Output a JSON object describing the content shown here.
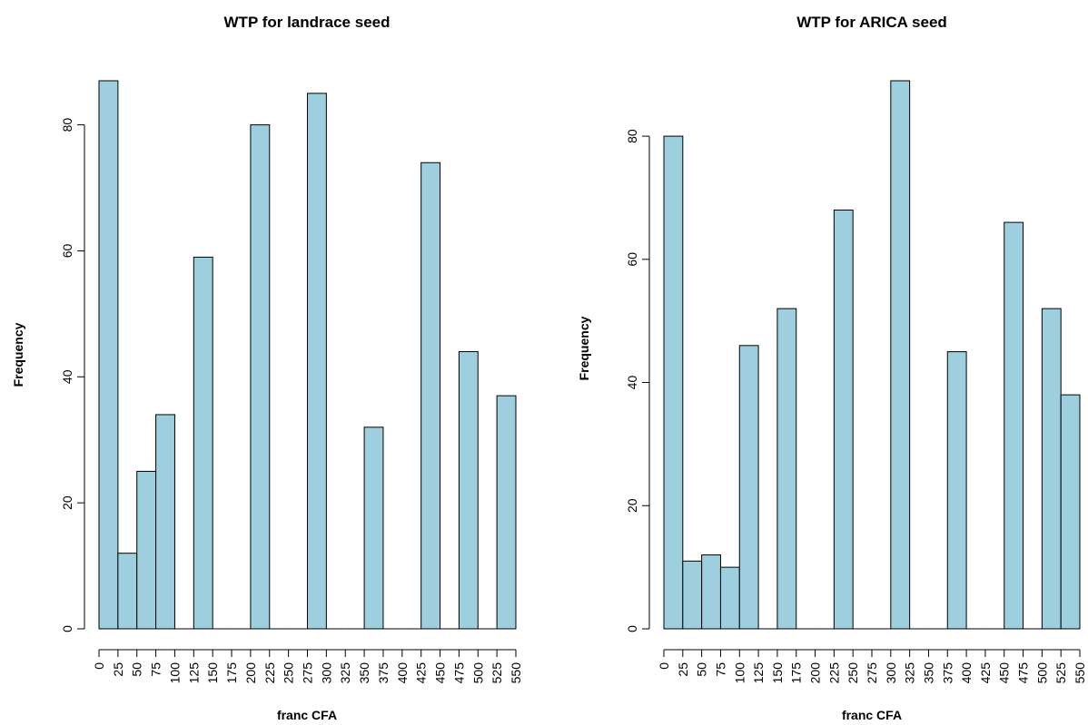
{
  "colors": {
    "bar_fill": "#9ecfdf",
    "bar_stroke": "#000000",
    "axis": "#000000"
  },
  "chart_data": [
    {
      "type": "bar",
      "title": "WTP for landrace seed",
      "xlabel": "franc CFA",
      "ylabel": "Frequency",
      "bin_edges": [
        0,
        25,
        50,
        75,
        100,
        125,
        150,
        175,
        200,
        225,
        250,
        275,
        300,
        325,
        350,
        375,
        400,
        425,
        450,
        475,
        500,
        525,
        550
      ],
      "values": [
        87,
        12,
        25,
        34,
        0,
        59,
        0,
        0,
        80,
        0,
        0,
        85,
        0,
        0,
        32,
        0,
        0,
        74,
        0,
        44,
        0,
        37
      ],
      "x_tick_labels": [
        "0",
        "25",
        "50",
        "75",
        "100",
        "125",
        "150",
        "175",
        "200",
        "225",
        "250",
        "275",
        "300",
        "325",
        "350",
        "375",
        "400",
        "425",
        "450",
        "475",
        "500",
        "525",
        "550"
      ],
      "y_ticks": [
        0,
        20,
        40,
        60,
        80
      ],
      "y_tick_labels": [
        "0",
        "20",
        "40",
        "60",
        "80"
      ],
      "xlim": [
        0,
        550
      ],
      "ylim": [
        0,
        87
      ],
      "grid": false,
      "legend": "none"
    },
    {
      "type": "bar",
      "title": "WTP for ARICA seed",
      "xlabel": "franc CFA",
      "ylabel": "Frequency",
      "bin_edges": [
        0,
        25,
        50,
        75,
        100,
        125,
        150,
        175,
        200,
        225,
        250,
        275,
        300,
        325,
        350,
        375,
        400,
        425,
        450,
        475,
        500,
        525,
        550
      ],
      "values": [
        80,
        11,
        12,
        10,
        46,
        0,
        52,
        0,
        0,
        68,
        0,
        0,
        89,
        0,
        0,
        45,
        0,
        0,
        66,
        0,
        52,
        38
      ],
      "x_tick_labels": [
        "0",
        "25",
        "50",
        "75",
        "100",
        "125",
        "150",
        "175",
        "200",
        "225",
        "250",
        "275",
        "300",
        "325",
        "350",
        "375",
        "400",
        "425",
        "450",
        "475",
        "500",
        "525",
        "550"
      ],
      "y_ticks": [
        0,
        20,
        40,
        60,
        80
      ],
      "y_tick_labels": [
        "0",
        "20",
        "40",
        "60",
        "80"
      ],
      "xlim": [
        0,
        550
      ],
      "ylim": [
        0,
        89
      ],
      "grid": false,
      "legend": "none"
    }
  ]
}
